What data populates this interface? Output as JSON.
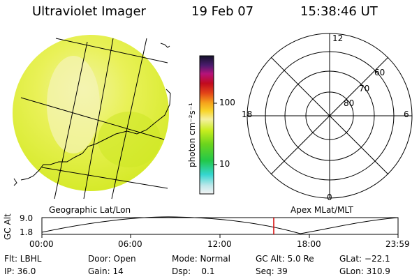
{
  "header": {
    "title": "Ultraviolet Imager",
    "date": "19 Feb 07",
    "time": "15:38:46 UT"
  },
  "colorbar": {
    "unit_label": "photon cm⁻²s⁻¹",
    "ticks": [
      "100",
      "10"
    ]
  },
  "panels": {
    "left_caption": "Geographic Lat/Lon",
    "right_caption": "Apex  MLat/MLT"
  },
  "polar": {
    "mlt_labels": [
      "12",
      "6",
      "0",
      "18"
    ],
    "lat_labels": [
      "60",
      "70",
      "80"
    ]
  },
  "altitude_plot": {
    "ylabel": "GC Alt",
    "yticks": [
      "9.0",
      "1.8"
    ],
    "xticks": [
      "00:00",
      "06:00",
      "12:00",
      "18:00",
      "23:59"
    ],
    "current_time_marker": "15:38"
  },
  "info": {
    "filter": "Flt: LBHL",
    "ip": "IP: 36.0",
    "door": "Door: Open",
    "gain": "Gain: 14",
    "mode": "Mode: Normal",
    "dsp": "Dsp:    0.1",
    "gc_alt": "GC Alt: 5.0 Re",
    "seq": "Seq: 39",
    "glat": "GLat: −22.1",
    "glon": "GLon: 310.9"
  },
  "colors": {
    "image_fill": "#e4f23a",
    "image_bright": "#f3f39a",
    "marker": "#d40000"
  }
}
